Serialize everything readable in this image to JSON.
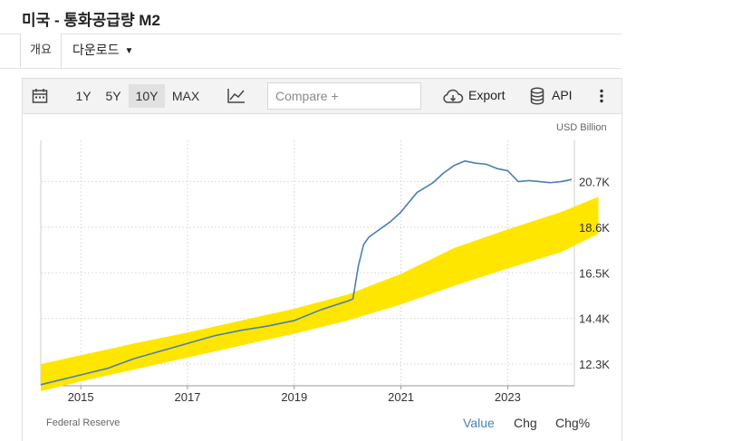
{
  "header": {
    "title": "미국 - 통화공급량 M2"
  },
  "tabs": {
    "overview": "개요",
    "download": "다운로드"
  },
  "toolbar": {
    "calendar_icon": "calendar-icon",
    "ranges": [
      "1Y",
      "5Y",
      "10Y",
      "MAX"
    ],
    "active_range": "10Y",
    "chart_type_icon": "line-chart-icon",
    "compare_placeholder": "Compare +",
    "export_label": "Export",
    "api_label": "API",
    "more_icon": "more-vertical-icon"
  },
  "colors": {
    "line": "#4a7fb5",
    "highlight": "#ffe600",
    "grid": "#dddddd"
  },
  "footer": {
    "source": "Federal Reserve",
    "view_options": [
      "Value",
      "Chg",
      "Chg%"
    ],
    "active_view": "Value"
  },
  "chart_data": {
    "type": "line",
    "unit_label": "USD Billion",
    "y_ticks": [
      "12.3K",
      "14.4K",
      "16.5K",
      "18.6K",
      "20.7K"
    ],
    "y_tick_values": [
      12300,
      14400,
      16500,
      18600,
      20700
    ],
    "x_ticks": [
      "2015",
      "2017",
      "2019",
      "2021",
      "2023"
    ],
    "x_tick_values": [
      2015,
      2017,
      2019,
      2021,
      2023
    ],
    "xlim": [
      2014.25,
      2024.25
    ],
    "ylim": [
      11300,
      22600
    ],
    "series": [
      {
        "x": [
          2014.25,
          2014.5,
          2015.0,
          2015.5,
          2016.0,
          2016.5,
          2017.0,
          2017.5,
          2018.0,
          2018.5,
          2019.0,
          2019.5,
          2020.0,
          2020.1,
          2020.2,
          2020.3,
          2020.4,
          2020.6,
          2020.8,
          2021.0,
          2021.3,
          2021.6,
          2021.8,
          2022.0,
          2022.2,
          2022.4,
          2022.6,
          2022.8,
          2023.0,
          2023.2,
          2023.4,
          2023.6,
          2023.8,
          2024.0,
          2024.2
        ],
        "y": [
          11350,
          11500,
          11800,
          12100,
          12550,
          12900,
          13250,
          13600,
          13850,
          14050,
          14300,
          14800,
          15200,
          15300,
          16800,
          17800,
          18150,
          18500,
          18850,
          19300,
          20200,
          20650,
          21100,
          21450,
          21650,
          21550,
          21500,
          21300,
          21200,
          20700,
          20750,
          20700,
          20650,
          20700,
          20800
        ]
      }
    ],
    "highlight_band": {
      "x": [
        2014.25,
        2015.0,
        2016.0,
        2017.0,
        2018.0,
        2019.0,
        2020.0,
        2021.0,
        2022.0,
        2023.0,
        2024.0,
        2024.7
      ],
      "upper": [
        12300,
        12700,
        13250,
        13750,
        14300,
        14850,
        15500,
        16450,
        17650,
        18500,
        19300,
        20000
      ],
      "lower": [
        11050,
        11500,
        12050,
        12600,
        13150,
        13700,
        14300,
        15050,
        15900,
        16700,
        17450,
        18300
      ]
    }
  }
}
